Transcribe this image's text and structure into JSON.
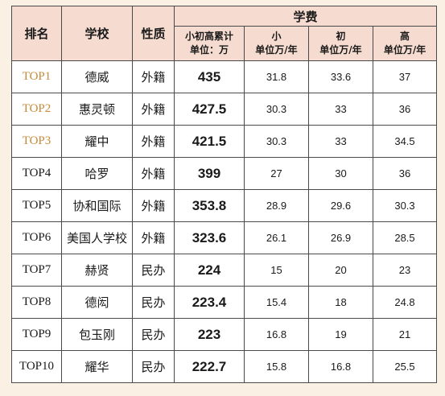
{
  "header": {
    "rank": "排名",
    "school": "学校",
    "nature": "性质",
    "fee_group": "学费",
    "total_top": "小初高累计",
    "total_bot": "单位：万",
    "primary_top": "小",
    "primary_bot": "单位万/年",
    "middle_top": "初",
    "middle_bot": "单位万/年",
    "high_top": "高",
    "high_bot": "单位万/年"
  },
  "rows": [
    {
      "rank": "TOP1",
      "school": "德威",
      "nature": "外籍",
      "total": "435",
      "primary": "31.8",
      "middle": "33.6",
      "high": "37"
    },
    {
      "rank": "TOP2",
      "school": "惠灵顿",
      "nature": "外籍",
      "total": "427.5",
      "primary": "30.3",
      "middle": "33",
      "high": "36"
    },
    {
      "rank": "TOP3",
      "school": "耀中",
      "nature": "外籍",
      "total": "421.5",
      "primary": "30.3",
      "middle": "33",
      "high": "34.5"
    },
    {
      "rank": "TOP4",
      "school": "哈罗",
      "nature": "外籍",
      "total": "399",
      "primary": "27",
      "middle": "30",
      "high": "36"
    },
    {
      "rank": "TOP5",
      "school": "协和国际",
      "nature": "外籍",
      "total": "353.8",
      "primary": "28.9",
      "middle": "29.6",
      "high": "30.3"
    },
    {
      "rank": "TOP6",
      "school": "美国人学校",
      "nature": "外籍",
      "total": "323.6",
      "primary": "26.1",
      "middle": "26.9",
      "high": "28.5"
    },
    {
      "rank": "TOP7",
      "school": "赫贤",
      "nature": "民办",
      "total": "224",
      "primary": "15",
      "middle": "20",
      "high": "23"
    },
    {
      "rank": "TOP8",
      "school": "德闳",
      "nature": "民办",
      "total": "223.4",
      "primary": "15.4",
      "middle": "18",
      "high": "24.8"
    },
    {
      "rank": "TOP9",
      "school": "包玉刚",
      "nature": "民办",
      "total": "223",
      "primary": "16.8",
      "middle": "19",
      "high": "21"
    },
    {
      "rank": "TOP10",
      "school": "耀华",
      "nature": "民办",
      "total": "222.7",
      "primary": "15.8",
      "middle": "16.8",
      "high": "25.5"
    }
  ],
  "colors": {
    "page_background": "#faf0e4",
    "header_background": "#f6dcd0",
    "top3_rank_color": "#c88a3a"
  }
}
